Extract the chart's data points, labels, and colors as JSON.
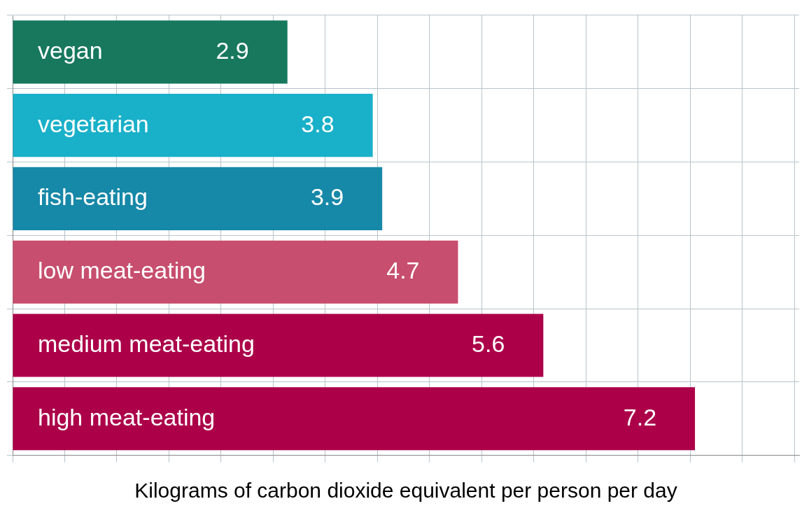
{
  "chart_data": {
    "type": "bar",
    "orientation": "horizontal",
    "categories": [
      "vegan",
      "vegetarian",
      "fish-eating",
      "low meat-eating",
      "medium meat-eating",
      "high meat-eating"
    ],
    "values": [
      2.9,
      3.8,
      3.9,
      4.7,
      5.6,
      7.2
    ],
    "colors": [
      "#17785e",
      "#19b0c9",
      "#1688a8",
      "#c74e6e",
      "#ac0049",
      "#ac0049"
    ],
    "xlabel": "Kilograms of carbon dioxide equivalent per person per day",
    "xlim": [
      0,
      8.3
    ],
    "xticks": [
      {
        "value": 0,
        "label": null
      },
      {
        "value": 0.55,
        "label": null
      },
      {
        "value": 1.1,
        "label": null
      },
      {
        "value": 1.65,
        "label": null
      },
      {
        "value": 2.2,
        "label": null
      },
      {
        "value": 2.75,
        "label": null
      },
      {
        "value": 3.3,
        "label": null
      },
      {
        "value": 3.85,
        "label": null
      },
      {
        "value": 4.4,
        "label": null
      },
      {
        "value": 4.95,
        "label": null
      },
      {
        "value": 5.5,
        "label": null
      },
      {
        "value": 6.05,
        "label": null
      },
      {
        "value": 6.6,
        "label": null
      },
      {
        "value": 7.15,
        "label": null
      },
      {
        "value": 7.7,
        "label": null
      },
      {
        "value": 8.25,
        "label": null
      }
    ],
    "grid": true,
    "data_labels": true,
    "legend": false
  }
}
